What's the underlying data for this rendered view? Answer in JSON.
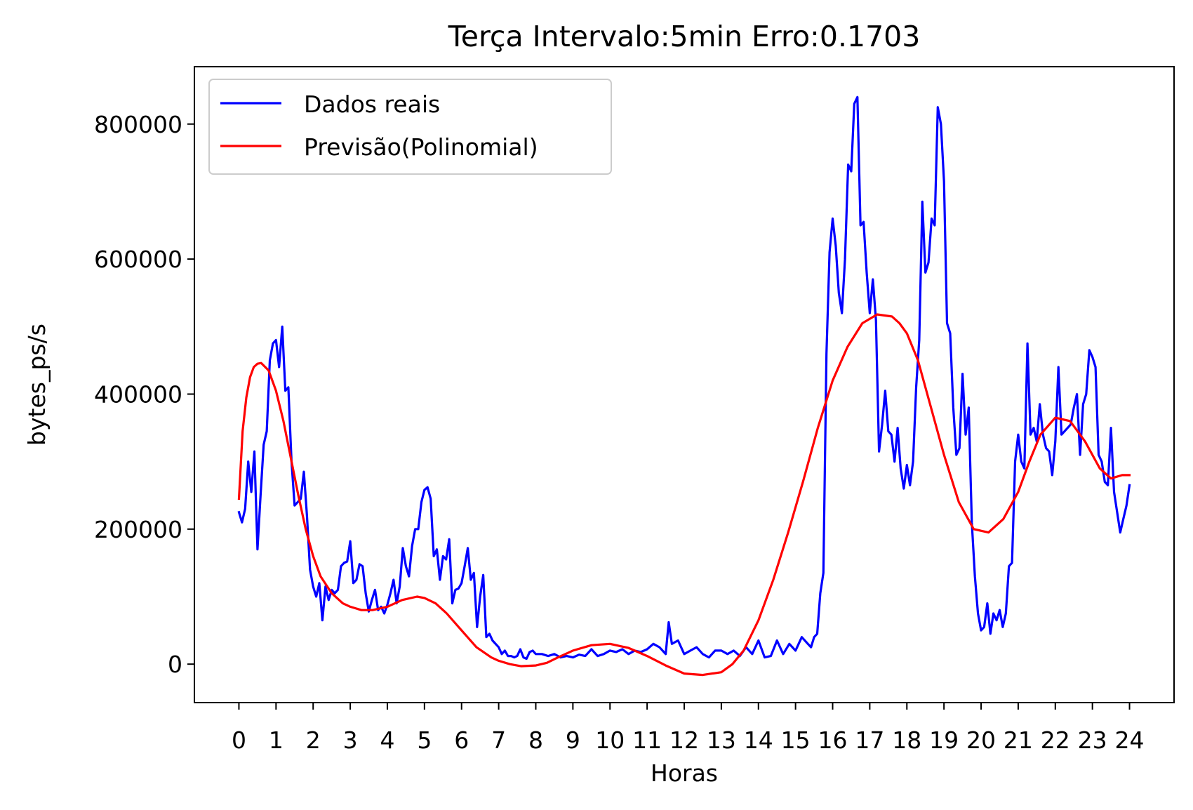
{
  "chart_data": {
    "type": "line",
    "title": "Terça Intervalo:5min Erro:0.1703",
    "xlabel": "Horas",
    "ylabel": "bytes_ps/s",
    "xlim": [
      -1.2,
      25.2
    ],
    "ylim": [
      -57000,
      885000
    ],
    "xticks": [
      0,
      1,
      2,
      3,
      4,
      5,
      6,
      7,
      8,
      9,
      10,
      11,
      12,
      13,
      14,
      15,
      16,
      17,
      18,
      19,
      20,
      21,
      22,
      23,
      24
    ],
    "xtick_labels": [
      "0",
      "1",
      "2",
      "3",
      "4",
      "5",
      "6",
      "7",
      "8",
      "9",
      "10",
      "11",
      "12",
      "13",
      "14",
      "15",
      "16",
      "17",
      "18",
      "19",
      "20",
      "21",
      "22",
      "23",
      "24"
    ],
    "yticks": [
      0,
      200000,
      400000,
      600000,
      800000
    ],
    "ytick_labels": [
      "0",
      "200000",
      "400000",
      "600000",
      "800000"
    ],
    "grid": false,
    "legend_position": "top-left",
    "series": [
      {
        "name": "Dados reais",
        "color": "#0000ff",
        "x": [
          0,
          0.083,
          0.167,
          0.25,
          0.333,
          0.417,
          0.5,
          0.583,
          0.667,
          0.75,
          0.833,
          0.917,
          1.0,
          1.083,
          1.167,
          1.25,
          1.333,
          1.417,
          1.5,
          1.583,
          1.667,
          1.75,
          1.833,
          1.917,
          2.0,
          2.083,
          2.167,
          2.25,
          2.333,
          2.417,
          2.5,
          2.583,
          2.667,
          2.75,
          2.833,
          2.917,
          3.0,
          3.083,
          3.167,
          3.25,
          3.333,
          3.417,
          3.5,
          3.583,
          3.667,
          3.75,
          3.833,
          3.917,
          4.0,
          4.083,
          4.167,
          4.25,
          4.333,
          4.417,
          4.5,
          4.583,
          4.667,
          4.75,
          4.833,
          4.917,
          5.0,
          5.083,
          5.167,
          5.25,
          5.333,
          5.417,
          5.5,
          5.583,
          5.667,
          5.75,
          5.833,
          5.917,
          6.0,
          6.083,
          6.167,
          6.25,
          6.333,
          6.417,
          6.5,
          6.583,
          6.667,
          6.75,
          6.833,
          6.917,
          7.0,
          7.083,
          7.167,
          7.25,
          7.333,
          7.417,
          7.5,
          7.583,
          7.667,
          7.75,
          7.833,
          7.917,
          8.0,
          8.167,
          8.333,
          8.5,
          8.667,
          8.833,
          9.0,
          9.167,
          9.333,
          9.5,
          9.667,
          9.833,
          10.0,
          10.167,
          10.333,
          10.5,
          10.667,
          10.833,
          11.0,
          11.167,
          11.333,
          11.5,
          11.583,
          11.667,
          11.833,
          12.0,
          12.167,
          12.333,
          12.5,
          12.667,
          12.833,
          13.0,
          13.167,
          13.333,
          13.5,
          13.667,
          13.833,
          14.0,
          14.167,
          14.333,
          14.5,
          14.667,
          14.833,
          15.0,
          15.167,
          15.333,
          15.417,
          15.5,
          15.583,
          15.667,
          15.75,
          15.833,
          15.917,
          16.0,
          16.083,
          16.167,
          16.25,
          16.333,
          16.417,
          16.5,
          16.583,
          16.667,
          16.75,
          16.833,
          16.917,
          17.0,
          17.083,
          17.167,
          17.25,
          17.333,
          17.417,
          17.5,
          17.583,
          17.667,
          17.75,
          17.833,
          17.917,
          18.0,
          18.083,
          18.167,
          18.25,
          18.333,
          18.417,
          18.5,
          18.583,
          18.667,
          18.75,
          18.833,
          18.917,
          19.0,
          19.083,
          19.167,
          19.25,
          19.333,
          19.417,
          19.5,
          19.583,
          19.667,
          19.75,
          19.833,
          19.917,
          20.0,
          20.083,
          20.167,
          20.25,
          20.333,
          20.417,
          20.5,
          20.583,
          20.667,
          20.75,
          20.833,
          20.917,
          21.0,
          21.083,
          21.167,
          21.25,
          21.333,
          21.417,
          21.5,
          21.583,
          21.667,
          21.75,
          21.833,
          21.917,
          22.0,
          22.083,
          22.167,
          22.25,
          22.333,
          22.417,
          22.5,
          22.583,
          22.667,
          22.75,
          22.833,
          22.917,
          23.0,
          23.083,
          23.167,
          23.25,
          23.333,
          23.417,
          23.5,
          23.583,
          23.667,
          23.75,
          23.833,
          23.917,
          24.0
        ],
        "y": [
          225000,
          210000,
          230000,
          300000,
          255000,
          315000,
          170000,
          250000,
          325000,
          345000,
          450000,
          475000,
          480000,
          440000,
          500000,
          405000,
          410000,
          300000,
          235000,
          240000,
          245000,
          285000,
          220000,
          140000,
          115000,
          100000,
          120000,
          65000,
          115000,
          95000,
          110000,
          105000,
          110000,
          145000,
          150000,
          152000,
          182000,
          120000,
          125000,
          148000,
          145000,
          105000,
          78000,
          95000,
          110000,
          80000,
          85000,
          75000,
          88000,
          105000,
          125000,
          90000,
          115000,
          172000,
          145000,
          130000,
          175000,
          200000,
          200000,
          240000,
          258000,
          262000,
          245000,
          160000,
          170000,
          125000,
          160000,
          155000,
          185000,
          90000,
          110000,
          112000,
          120000,
          145000,
          172000,
          125000,
          135000,
          55000,
          100000,
          132000,
          40000,
          45000,
          35000,
          30000,
          25000,
          15000,
          20000,
          12000,
          12000,
          10000,
          12000,
          22000,
          10000,
          8000,
          18000,
          20000,
          15000,
          15000,
          12000,
          15000,
          10000,
          12000,
          10000,
          14000,
          12000,
          22000,
          12000,
          15000,
          20000,
          18000,
          22000,
          15000,
          20000,
          18000,
          22000,
          30000,
          25000,
          15000,
          62000,
          30000,
          35000,
          15000,
          20000,
          25000,
          15000,
          10000,
          20000,
          20000,
          15000,
          20000,
          12000,
          25000,
          15000,
          35000,
          10000,
          12000,
          35000,
          15000,
          30000,
          20000,
          40000,
          30000,
          25000,
          40000,
          45000,
          105000,
          135000,
          460000,
          610000,
          660000,
          620000,
          550000,
          520000,
          600000,
          740000,
          730000,
          830000,
          840000,
          650000,
          655000,
          580000,
          520000,
          570000,
          510000,
          315000,
          355000,
          405000,
          345000,
          340000,
          300000,
          350000,
          290000,
          260000,
          295000,
          265000,
          300000,
          410000,
          480000,
          685000,
          580000,
          595000,
          660000,
          650000,
          825000,
          800000,
          715000,
          505000,
          490000,
          380000,
          310000,
          320000,
          430000,
          340000,
          380000,
          210000,
          130000,
          75000,
          50000,
          55000,
          90000,
          45000,
          75000,
          65000,
          80000,
          55000,
          75000,
          145000,
          150000,
          300000,
          340000,
          300000,
          290000,
          475000,
          340000,
          350000,
          330000,
          385000,
          340000,
          320000,
          315000,
          280000,
          330000,
          440000,
          340000,
          345000,
          350000,
          355000,
          380000,
          400000,
          310000,
          385000,
          400000,
          465000,
          455000,
          440000,
          310000,
          300000,
          270000,
          265000,
          350000,
          255000,
          225000,
          195000,
          215000,
          235000,
          265000
        ]
      },
      {
        "name": "Previsão(Polinomial)",
        "color": "#ff0000",
        "x": [
          0,
          0.1,
          0.2,
          0.3,
          0.4,
          0.5,
          0.6,
          0.8,
          1.0,
          1.2,
          1.4,
          1.6,
          1.8,
          2.0,
          2.2,
          2.5,
          2.8,
          3.0,
          3.3,
          3.6,
          4.0,
          4.4,
          4.8,
          5.0,
          5.3,
          5.6,
          6.0,
          6.4,
          6.8,
          7.0,
          7.3,
          7.6,
          8.0,
          8.3,
          8.6,
          9.0,
          9.5,
          10.0,
          10.5,
          11.0,
          11.5,
          12.0,
          12.5,
          13.0,
          13.3,
          13.6,
          14.0,
          14.4,
          14.8,
          15.2,
          15.6,
          16.0,
          16.4,
          16.8,
          17.2,
          17.6,
          17.8,
          18.0,
          18.3,
          18.6,
          19.0,
          19.4,
          19.8,
          20.2,
          20.6,
          21.0,
          21.3,
          21.6,
          22.0,
          22.4,
          22.8,
          23.2,
          23.5,
          23.8,
          24.0
        ],
        "y": [
          245000,
          345000,
          395000,
          425000,
          440000,
          445000,
          446000,
          435000,
          405000,
          360000,
          305000,
          250000,
          200000,
          160000,
          130000,
          105000,
          90000,
          85000,
          80000,
          80000,
          85000,
          95000,
          100000,
          98000,
          90000,
          75000,
          50000,
          25000,
          10000,
          5000,
          0,
          -3000,
          -2000,
          2000,
          10000,
          20000,
          28000,
          30000,
          24000,
          12000,
          -2000,
          -14000,
          -16000,
          -12000,
          0,
          20000,
          65000,
          125000,
          195000,
          270000,
          350000,
          420000,
          470000,
          505000,
          518000,
          515000,
          505000,
          490000,
          450000,
          390000,
          310000,
          240000,
          200000,
          195000,
          215000,
          255000,
          300000,
          340000,
          365000,
          360000,
          330000,
          290000,
          275000,
          280000,
          280000
        ]
      }
    ]
  }
}
